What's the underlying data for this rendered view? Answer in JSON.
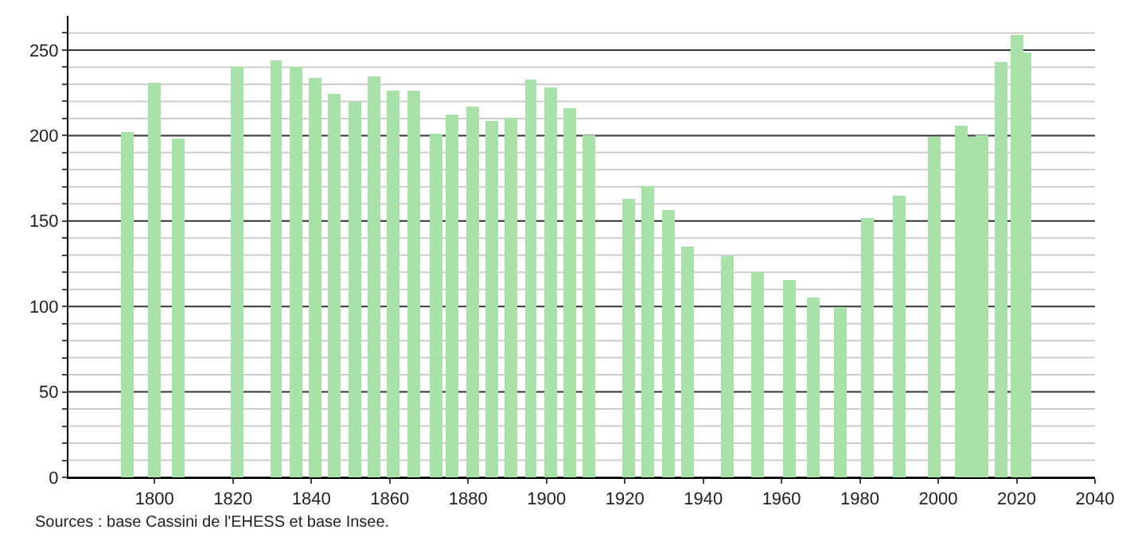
{
  "chart_data": {
    "type": "bar",
    "x": [
      1793,
      1800,
      1806,
      1821,
      1831,
      1836,
      1841,
      1846,
      1851,
      1856,
      1861,
      1866,
      1872,
      1876,
      1881,
      1886,
      1891,
      1896,
      1901,
      1906,
      1911,
      1921,
      1926,
      1931,
      1936,
      1946,
      1954,
      1962,
      1968,
      1975,
      1982,
      1990,
      1999,
      2006,
      2009,
      2011,
      2016,
      2020,
      2022
    ],
    "values": [
      202,
      231,
      198,
      240,
      244,
      240,
      234,
      224,
      220,
      235,
      226,
      226,
      201,
      212,
      217,
      209,
      210,
      233,
      228,
      216,
      200,
      163,
      170,
      156,
      135,
      129,
      120,
      115,
      105,
      100,
      152,
      165,
      199,
      206,
      199,
      200,
      243,
      259,
      249
    ],
    "color": "#a8e2a8",
    "xlim": [
      1778,
      2040
    ],
    "xticks": [
      1800,
      1820,
      1840,
      1860,
      1880,
      1900,
      1920,
      1940,
      1960,
      1980,
      2000,
      2020,
      2040
    ],
    "ylim": [
      0,
      270
    ],
    "yticks": [
      0,
      {
        "value": 10,
        "label": null
      },
      {
        "value": 20,
        "label": null
      },
      {
        "value": 30,
        "label": null
      },
      {
        "value": 40,
        "label": null
      },
      50,
      {
        "value": 60,
        "label": null
      },
      {
        "value": 70,
        "label": null
      },
      {
        "value": 80,
        "label": null
      },
      {
        "value": 90,
        "label": null
      },
      100,
      {
        "value": 110,
        "label": null
      },
      {
        "value": 120,
        "label": null
      },
      {
        "value": 130,
        "label": null
      },
      {
        "value": 140,
        "label": null
      },
      150,
      {
        "value": 160,
        "label": null
      },
      {
        "value": 170,
        "label": null
      },
      {
        "value": 180,
        "label": null
      },
      {
        "value": 190,
        "label": null
      },
      200,
      {
        "value": 210,
        "label": null
      },
      {
        "value": 220,
        "label": null
      },
      {
        "value": 230,
        "label": null
      },
      {
        "value": 240,
        "label": null
      },
      250,
      {
        "value": 260,
        "label": null
      }
    ],
    "grid": "y",
    "annotations": [
      "Sources : base Cassini de l'EHESS et base Insee."
    ]
  }
}
